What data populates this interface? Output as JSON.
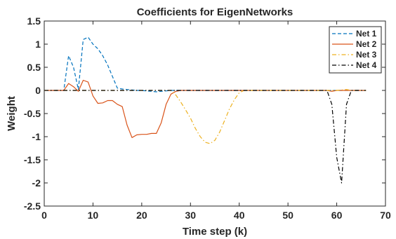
{
  "chart_data": {
    "type": "line",
    "title": "Coefficients for EigenNetworks",
    "xlabel": "Time step (k)",
    "ylabel": "Weight",
    "xlim": [
      0,
      70
    ],
    "ylim": [
      -2.5,
      1.5
    ],
    "xticks": [
      0,
      10,
      20,
      30,
      40,
      50,
      60,
      70
    ],
    "yticks": [
      -2.5,
      -2,
      -1.5,
      -1,
      -0.5,
      0,
      0.5,
      1,
      1.5
    ],
    "xtick_labels": [
      "0",
      "10",
      "20",
      "30",
      "40",
      "50",
      "60",
      "70"
    ],
    "ytick_labels": [
      "-2.5",
      "-2",
      "-1.5",
      "-1",
      "-0.5",
      "0",
      "0.5",
      "1",
      "1.5"
    ],
    "grid": false,
    "legend_position": "top-right",
    "series": [
      {
        "name": "Net 1",
        "color": "#0072BD",
        "dash": "dashed",
        "x": [
          0,
          1,
          2,
          3,
          4,
          5,
          6,
          7,
          8,
          9,
          10,
          11,
          12,
          13,
          14,
          15,
          16,
          17,
          18,
          19,
          20,
          21,
          22,
          23,
          24,
          25,
          26,
          27,
          28,
          30,
          35,
          40,
          45,
          50,
          55,
          60,
          61,
          62,
          63,
          64,
          65,
          66
        ],
        "y": [
          0,
          0,
          0,
          0,
          0,
          0.75,
          0.5,
          0.02,
          1.1,
          1.15,
          1.0,
          0.9,
          0.75,
          0.55,
          0.3,
          0.05,
          0.03,
          0.02,
          0.01,
          0.0,
          0.0,
          -0.01,
          -0.02,
          -0.03,
          -0.02,
          -0.01,
          0,
          0,
          0,
          0,
          0,
          0,
          0,
          0,
          0,
          0,
          0,
          0,
          0,
          0,
          0,
          0
        ]
      },
      {
        "name": "Net 2",
        "color": "#D95319",
        "dash": "solid",
        "x": [
          0,
          1,
          2,
          3,
          4,
          5,
          6,
          7,
          8,
          9,
          10,
          11,
          12,
          13,
          14,
          15,
          16,
          17,
          18,
          19,
          20,
          21,
          22,
          23,
          24,
          25,
          26,
          27,
          28,
          30,
          35,
          40,
          45,
          50,
          55,
          58,
          59,
          60,
          61,
          62,
          63,
          64,
          65,
          66
        ],
        "y": [
          0,
          0,
          0,
          0,
          0,
          0.15,
          0.08,
          -0.02,
          0.22,
          0.18,
          -0.12,
          -0.28,
          -0.27,
          -0.22,
          -0.22,
          -0.3,
          -0.35,
          -0.75,
          -1.02,
          -0.96,
          -0.95,
          -0.95,
          -0.93,
          -0.93,
          -0.7,
          -0.3,
          -0.08,
          -0.02,
          0,
          0,
          0,
          0,
          0,
          0,
          0,
          0,
          -0.02,
          0,
          0,
          0,
          0,
          0,
          0,
          0
        ]
      },
      {
        "name": "Net 3",
        "color": "#EDB120",
        "dash": "dashdot",
        "x": [
          0,
          5,
          10,
          15,
          20,
          25,
          26,
          27,
          28,
          29,
          30,
          31,
          32,
          33,
          34,
          35,
          36,
          37,
          38,
          39,
          40,
          41,
          45,
          50,
          55,
          60,
          62,
          63,
          64,
          65,
          66
        ],
        "y": [
          0,
          0,
          0,
          0,
          0,
          0,
          0,
          -0.1,
          -0.25,
          -0.42,
          -0.6,
          -0.82,
          -1.0,
          -1.12,
          -1.15,
          -1.08,
          -0.9,
          -0.65,
          -0.4,
          -0.2,
          -0.05,
          0,
          0,
          0,
          0,
          0,
          0.02,
          0,
          0,
          0,
          0
        ]
      },
      {
        "name": "Net 4",
        "color": "#000000",
        "dash": "dashdot",
        "x": [
          0,
          10,
          20,
          30,
          40,
          50,
          55,
          58,
          59,
          60,
          61,
          62,
          63,
          64,
          65,
          66
        ],
        "y": [
          0,
          0,
          0,
          0,
          0,
          0,
          0,
          0,
          -0.3,
          -1.45,
          -2.0,
          -0.3,
          0,
          0,
          0,
          0
        ]
      }
    ]
  }
}
